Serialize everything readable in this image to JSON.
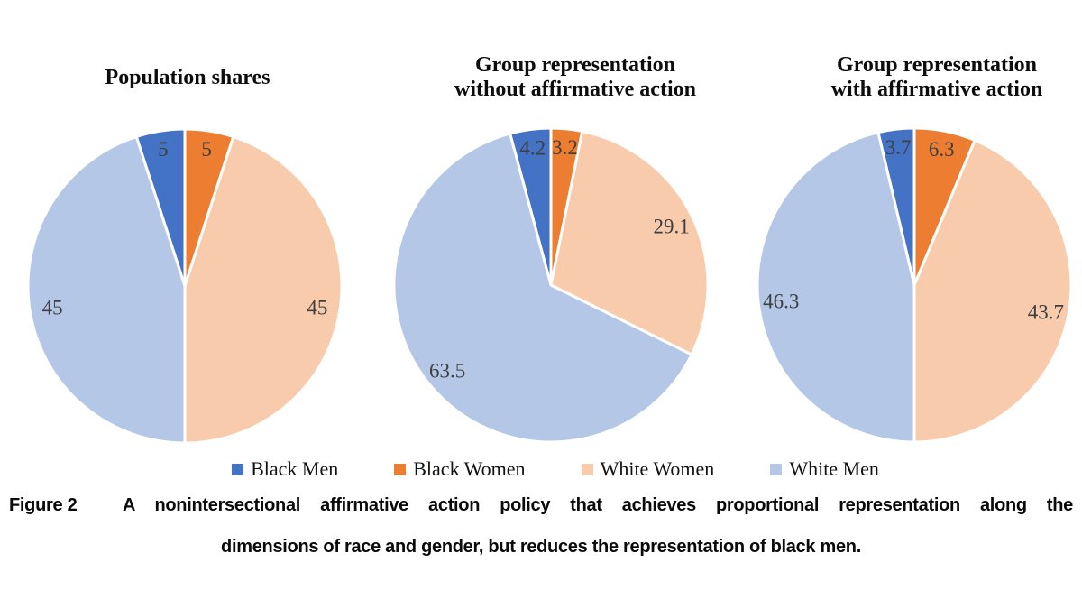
{
  "figure": {
    "caption_label": "Figure 2",
    "caption_line1": "A nonintersectional affirmative action policy that achieves proportional representation along the",
    "caption_line2": "dimensions of race and gender, but reduces the representation of black men."
  },
  "legend": {
    "position": "bottom-center",
    "items": [
      {
        "label": "Black Men",
        "color": "#4472C4"
      },
      {
        "label": "Black Women",
        "color": "#ED7D31"
      },
      {
        "label": "White Women",
        "color": "#F8CBAD"
      },
      {
        "label": "White Men",
        "color": "#B4C7E7"
      }
    ]
  },
  "colors": {
    "black_men": "#4472C4",
    "black_women": "#ED7D31",
    "white_women": "#F8CBAD",
    "white_men": "#B4C7E7",
    "slice_label_text": "#3F3F3F",
    "slice_border": "#FFFFFF"
  },
  "chart_data": [
    {
      "type": "pie",
      "title": "Population shares",
      "title_lines": [
        "Population shares"
      ],
      "categories": [
        "Black Men",
        "Black Women",
        "White Women",
        "White Men"
      ],
      "values": [
        5,
        5,
        45,
        45
      ],
      "colors": [
        "#4472C4",
        "#ED7D31",
        "#F8CBAD",
        "#B4C7E7"
      ],
      "unit": "percent",
      "rotation_deg": -18,
      "layout": "slices clockwise from top; Black Men slice ends at 12 o'clock; labels inside slices"
    },
    {
      "type": "pie",
      "title": "Group representation without affirmative action",
      "title_lines": [
        "Group representation",
        "without affirmative action"
      ],
      "categories": [
        "Black Men",
        "Black Women",
        "White Women",
        "White Men"
      ],
      "values": [
        4.2,
        3.2,
        29.1,
        63.5
      ],
      "colors": [
        "#4472C4",
        "#ED7D31",
        "#F8CBAD",
        "#B4C7E7"
      ],
      "unit": "percent",
      "rotation_deg": -15.12,
      "layout": "slices clockwise from top; Black Men slice ends at 12 o'clock; labels inside slices"
    },
    {
      "type": "pie",
      "title": "Group representation with affirmative action",
      "title_lines": [
        "Group representation",
        "with affirmative action"
      ],
      "categories": [
        "Black Men",
        "Black Women",
        "White Women",
        "White Men"
      ],
      "values": [
        3.7,
        6.3,
        43.7,
        46.3
      ],
      "colors": [
        "#4472C4",
        "#ED7D31",
        "#F8CBAD",
        "#B4C7E7"
      ],
      "unit": "percent",
      "rotation_deg": -13.32,
      "layout": "slices clockwise from top; Black Men slice ends at 12 o'clock; labels inside slices"
    }
  ]
}
